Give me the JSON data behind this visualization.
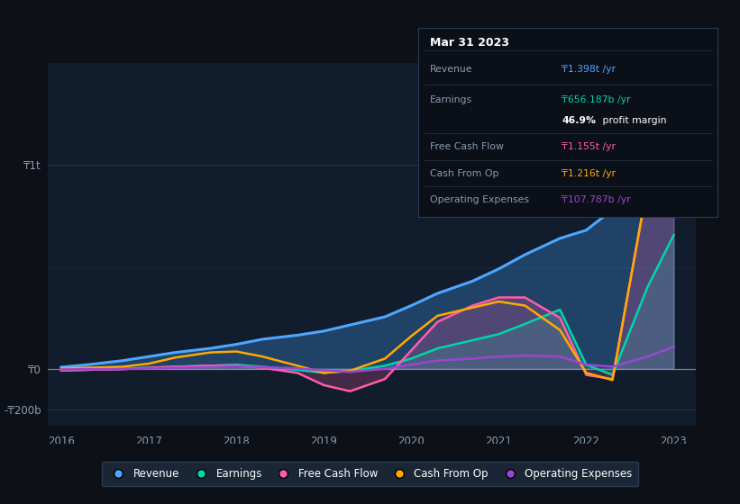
{
  "background_color": "#0d1117",
  "plot_bg_color": "#111c2d",
  "years": [
    2016,
    2016.3,
    2016.7,
    2017,
    2017.3,
    2017.7,
    2018,
    2018.3,
    2018.7,
    2019,
    2019.3,
    2019.7,
    2020,
    2020.3,
    2020.7,
    2021,
    2021.3,
    2021.7,
    2022,
    2022.3,
    2022.7,
    2023
  ],
  "revenue": [
    8,
    20,
    40,
    60,
    80,
    100,
    120,
    145,
    165,
    185,
    215,
    255,
    310,
    370,
    430,
    490,
    560,
    640,
    680,
    780,
    1050,
    1398
  ],
  "earnings": [
    -8,
    -5,
    0,
    5,
    10,
    15,
    20,
    10,
    -5,
    -20,
    -10,
    15,
    50,
    100,
    140,
    170,
    220,
    290,
    20,
    -30,
    400,
    656
  ],
  "free_cash_flow": [
    -8,
    -5,
    -2,
    5,
    10,
    15,
    15,
    5,
    -20,
    -80,
    -110,
    -50,
    90,
    230,
    310,
    350,
    350,
    250,
    -30,
    -50,
    900,
    1155
  ],
  "cash_from_op": [
    2,
    5,
    10,
    25,
    55,
    80,
    85,
    60,
    15,
    -20,
    -10,
    50,
    160,
    260,
    300,
    330,
    310,
    190,
    -20,
    -55,
    900,
    1216
  ],
  "op_expenses": [
    -3,
    -2,
    -1,
    2,
    5,
    8,
    12,
    8,
    2,
    -8,
    -15,
    0,
    20,
    40,
    50,
    60,
    65,
    60,
    20,
    10,
    60,
    108
  ],
  "revenue_color": "#4da6ff",
  "earnings_color": "#00d4aa",
  "free_cash_flow_color": "#ff5ca8",
  "cash_from_op_color": "#ffaa00",
  "op_expenses_color": "#9b45d4",
  "xlabel_years": [
    2016,
    2017,
    2018,
    2019,
    2020,
    2021,
    2022,
    2023
  ],
  "legend_labels": [
    "Revenue",
    "Earnings",
    "Free Cash Flow",
    "Cash From Op",
    "Operating Expenses"
  ],
  "legend_colors": [
    "#4da6ff",
    "#00d4aa",
    "#ff5ca8",
    "#ffaa00",
    "#9b45d4"
  ],
  "tooltip_title": "Mar 31 2023",
  "tooltip_rows": [
    {
      "label": "Revenue",
      "value": "₸1.398t /yr",
      "color": "#4da6ff",
      "bold_val": false
    },
    {
      "label": "Earnings",
      "value": "₸656.187b /yr",
      "color": "#00d4aa",
      "bold_val": false
    },
    {
      "label": "",
      "value": "46.9% profit margin",
      "color": "white",
      "bold_val": true
    },
    {
      "label": "Free Cash Flow",
      "value": "₸1.155t /yr",
      "color": "#ff5ca8",
      "bold_val": false
    },
    {
      "label": "Cash From Op",
      "value": "₸1.216t /yr",
      "color": "#ffaa00",
      "bold_val": false
    },
    {
      "label": "Operating Expenses",
      "value": "₸107.787b /yr",
      "color": "#9b45d4",
      "bold_val": false
    }
  ]
}
